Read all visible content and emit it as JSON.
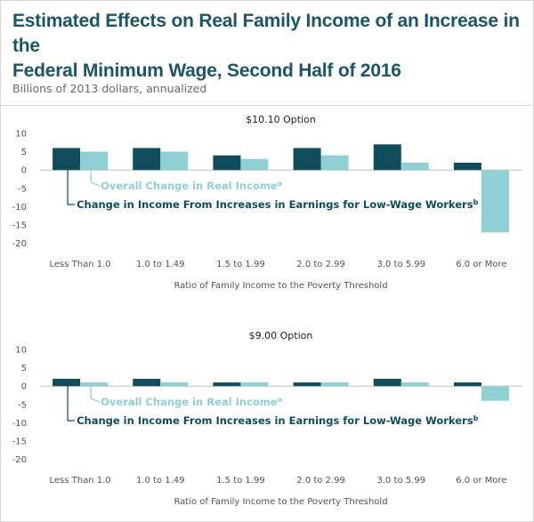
{
  "header": {
    "title_line1": "Estimated Effects on Real Family Income of an Increase in the",
    "title_line2": "Federal Minimum Wage, Second Half of 2016",
    "subtitle": "Billions of 2013 dollars, annualized"
  },
  "colors": {
    "earnings": "#0f4d5c",
    "overall": "#8fcfd6",
    "axis": "#bfbfbf"
  },
  "chart_data": [
    {
      "type": "bar",
      "title": "$10.10 Option",
      "xlabel": "Ratio of Family Income to the Poverty Threshold",
      "ylabel": "",
      "ylim": [
        -20,
        10
      ],
      "yticks": [
        10,
        5,
        0,
        -5,
        -10,
        -15,
        -20
      ],
      "categories": [
        "Less Than 1.0",
        "1.0 to 1.49",
        "1.5 to 1.99",
        "2.0 to 2.99",
        "3.0 to 5.99",
        "6.0 or More"
      ],
      "series": [
        {
          "name": "Change in Income From Increases in Earnings for Low-Wage Workers",
          "superscript": "b",
          "values": [
            6,
            6,
            4,
            6,
            7,
            2
          ]
        },
        {
          "name": "Overall Change in Real Income",
          "superscript": "a",
          "values": [
            5,
            5,
            3,
            4,
            2,
            -17
          ]
        }
      ]
    },
    {
      "type": "bar",
      "title": "$9.00 Option",
      "xlabel": "Ratio of Family Income to the Poverty Threshold",
      "ylabel": "",
      "ylim": [
        -20,
        10
      ],
      "yticks": [
        10,
        5,
        0,
        -5,
        -10,
        -15,
        -20
      ],
      "categories": [
        "Less Than 1.0",
        "1.0 to 1.49",
        "1.5 to 1.99",
        "2.0 to 2.99",
        "3.0 to 5.99",
        "6.0 or More"
      ],
      "series": [
        {
          "name": "Change in Income From Increases in Earnings for Low-Wage Workers",
          "superscript": "b",
          "values": [
            2,
            2,
            1,
            1,
            2,
            1
          ]
        },
        {
          "name": "Overall Change in Real Income",
          "superscript": "a",
          "values": [
            1,
            1,
            1,
            1,
            1,
            -4
          ]
        }
      ]
    }
  ]
}
